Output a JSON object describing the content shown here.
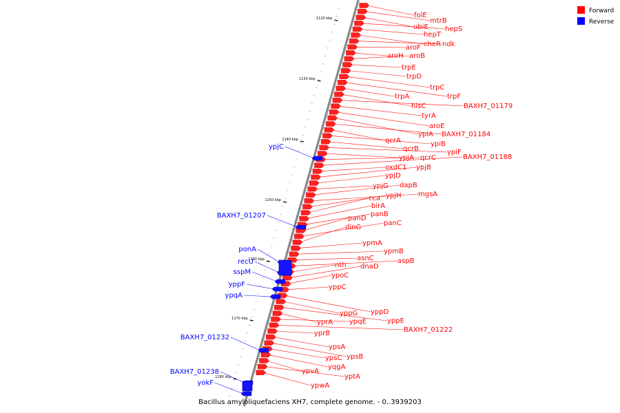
{
  "caption": "Bacillus amyloliquefaciens XH7, complete genome. - 0..3939203",
  "legend": [
    {
      "label": "Forward",
      "color": "#ff0000"
    },
    {
      "label": "Reverse",
      "color": "#0000ff"
    }
  ],
  "ticks": [
    "1120 kbp",
    "1130 kbp",
    "1140 kbp",
    "1150 kbp",
    "1160 kbp",
    "1170 kbp",
    "1180 kbp"
  ],
  "forward_genes": [
    "folE",
    "mtrB",
    "ubiE",
    "hepS",
    "hepT",
    "cheR",
    "ndk",
    "aroF",
    "aroH",
    "aroB",
    "trpE",
    "trpD",
    "trpC",
    "trpF",
    "trpA",
    "hisC",
    "BAXH7_01179",
    "tyrA",
    "aroE",
    "ypiA",
    "BAXH7_01184",
    "qcrA",
    "ypiB",
    "qcrB",
    "ypiF",
    "ypjA",
    "qcrC",
    "BAXH7_01188",
    "oxdC1",
    "ypjB",
    "ypjD",
    "ypjG",
    "dapB",
    "mgsA",
    "ypjH",
    "cca",
    "birA",
    "panB",
    "panD",
    "panC",
    "dinG",
    "ypmA",
    "ypmB",
    "asnC",
    "aspB",
    "nth",
    "dnaD",
    "ypoC",
    "yppC",
    "yppD",
    "yppG",
    "yppE",
    "yprA",
    "ypqE",
    "BAXH7_01222",
    "yprB",
    "ypsA",
    "ypsB",
    "ypsC",
    "yqgA",
    "ypvA",
    "yptA",
    "ypwA"
  ],
  "reverse_genes": [
    "ypjC",
    "BAXH7_01207",
    "ponA",
    "recU",
    "sspM",
    "yppF",
    "ypqA",
    "BAXH7_01232",
    "BAXH7_01238",
    "yokF"
  ]
}
